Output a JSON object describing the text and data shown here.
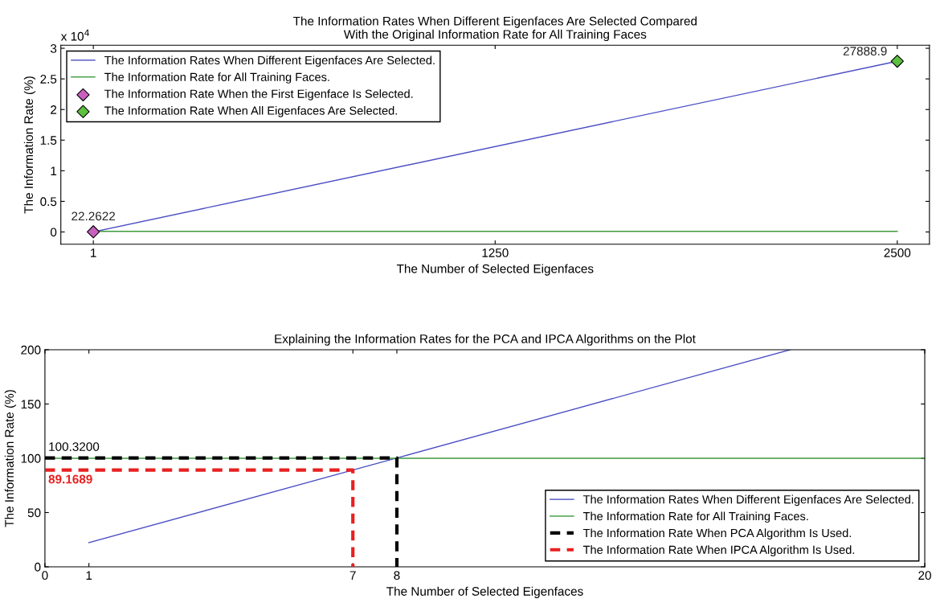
{
  "chart_data": [
    {
      "type": "line",
      "title": "The Information Rates When Different Eigenfaces Are Selected Compared\nWith the Original Information Rate for All Training Faces",
      "xlabel": "The Number of Selected Eigenfaces",
      "ylabel": "The Information Rate (%)",
      "xlim": [
        -100,
        2600
      ],
      "xticks": [
        1,
        1250,
        2500
      ],
      "ylim": [
        -0.2,
        3.05
      ],
      "yticks": [
        0,
        0.5,
        1,
        1.5,
        2,
        2.5,
        3
      ],
      "legend": "top left",
      "grid": false,
      "series": [
        {
          "name": "The Information Rates When Different Eigenfaces Are Selected.",
          "color": "#4b4fc4",
          "x": [
            1,
            2500
          ],
          "values": [
            0.00222622,
            2.78889
          ]
        },
        {
          "name": "The Information Rate for All Training Faces.",
          "color": "#3c9a3c",
          "x": [
            1,
            2500
          ],
          "values": [
            0.01,
            0.01
          ]
        },
        {
          "name": "The Information Rate When the First Eigenface Is Selected.",
          "type": "scatter",
          "marker": "diamond",
          "color": "#c860c0",
          "x": [
            1
          ],
          "values": [
            0.00222622
          ]
        },
        {
          "name": "The Information Rate When All Eigenfaces Are Selected.",
          "type": "scatter",
          "marker": "diamond",
          "color": "#5cc040",
          "x": [
            2500
          ],
          "values": [
            2.78889
          ]
        }
      ],
      "annotations": [
        "x 10$^{4}$",
        {
          "text": "22.2622",
          "x": 1,
          "y": 0.00222622
        },
        {
          "text": "27888.9",
          "x": 2500,
          "y": 2.78889
        }
      ]
    },
    {
      "type": "line",
      "title": "Explaining the Information Rates for the PCA and IPCA Algorithms on the Plot",
      "xlabel": "The Number of Selected Eigenfaces",
      "ylabel": "The Information Rate (%)",
      "xlim": [
        0,
        20
      ],
      "xticks": [
        0,
        1,
        7,
        8,
        20
      ],
      "ylim": [
        0,
        200
      ],
      "yticks": [
        0,
        50,
        100,
        150,
        200
      ],
      "legend": "bottom right",
      "grid": false,
      "series": [
        {
          "name": "The Information Rates When Different Eigenfaces Are Selected.",
          "color": "#4b4fc4",
          "x": [
            1,
            7,
            8,
            16.94
          ],
          "values": [
            22.2622,
            89.1689,
            100.32,
            200
          ]
        },
        {
          "name": "The Information Rate for All Training Faces.",
          "color": "#3c9a3c",
          "x": [
            0,
            20
          ],
          "values": [
            100,
            100
          ]
        },
        {
          "name": "The Information Rate When PCA Algorithm Is Used.",
          "color": "#000000",
          "line_style": "dashed",
          "x": [
            0,
            8,
            8
          ],
          "values": [
            100.32,
            100.32,
            0
          ]
        },
        {
          "name": "The Information Rate When IPCA Algorithm Is Used.",
          "color": "#e82020",
          "line_style": "dashed",
          "x": [
            0,
            7,
            7
          ],
          "values": [
            89.1689,
            89.1689,
            0
          ]
        }
      ],
      "annotations": [
        {
          "text": "100.3200",
          "x": 0,
          "y": 100.32
        },
        {
          "text": "89.1689",
          "x": 0,
          "y": 89.1689
        }
      ]
    }
  ]
}
